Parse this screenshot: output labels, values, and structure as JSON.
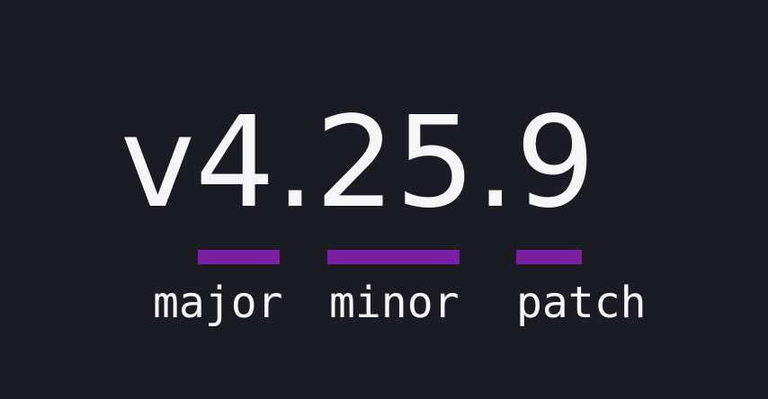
{
  "colors": {
    "background": "#1a1b23",
    "text": "#f6f6f8",
    "accent": "#7b1fa2"
  },
  "version": {
    "full_text": "v4.25.9",
    "prefix": "v",
    "segments": [
      {
        "value": "4",
        "label": "major"
      },
      {
        "value": "25",
        "label": "minor"
      },
      {
        "value": "9",
        "label": "patch"
      }
    ]
  }
}
